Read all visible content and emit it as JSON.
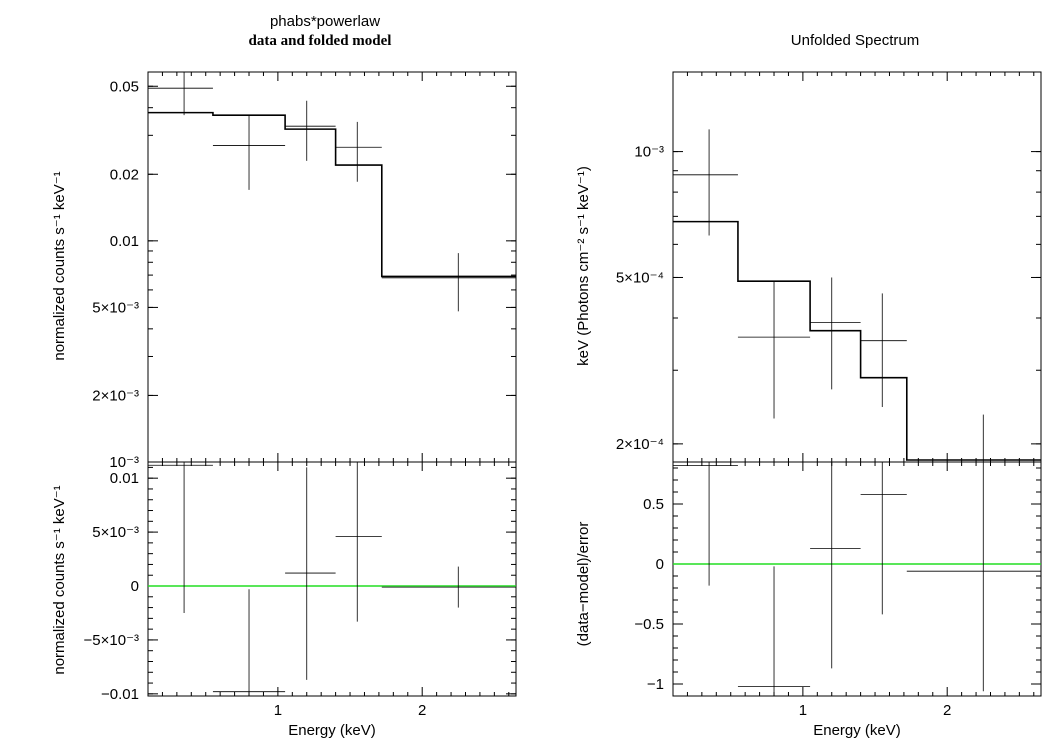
{
  "chart_data": [
    {
      "type": "step",
      "title": "phabs*powerlaw",
      "subtitle": "data and folded model",
      "top": {
        "ylabel": "normalized counts s⁻¹ keV⁻¹",
        "yscale": "log",
        "ylim": [
          0.001,
          0.058
        ],
        "yticks": [
          {
            "value": 0.05,
            "label": "0.05"
          },
          {
            "value": 0.02,
            "label": "0.02"
          },
          {
            "value": 0.01,
            "label": "0.01"
          },
          {
            "value": 0.005,
            "label": "5×10⁻³"
          },
          {
            "value": 0.002,
            "label": "2×10⁻³"
          },
          {
            "value": 0.001,
            "label": "10⁻³"
          }
        ],
        "data": [
          {
            "x": 0.35,
            "xerr": [
              0.1,
              0.55
            ],
            "y": 0.049,
            "yerr": [
              0.037,
              0.058
            ]
          },
          {
            "x": 0.8,
            "xerr": [
              0.55,
              1.05
            ],
            "y": 0.027,
            "yerr": [
              0.017,
              0.037
            ]
          },
          {
            "x": 1.2,
            "xerr": [
              1.05,
              1.4
            ],
            "y": 0.033,
            "yerr": [
              0.023,
              0.043
            ]
          },
          {
            "x": 1.55,
            "xerr": [
              1.4,
              1.72
            ],
            "y": 0.0265,
            "yerr": [
              0.0185,
              0.0345
            ]
          },
          {
            "x": 2.25,
            "xerr": [
              1.72,
              2.65
            ],
            "y": 0.0068,
            "yerr": [
              0.0048,
              0.0088
            ]
          }
        ],
        "model": [
          {
            "x0": 0.1,
            "x1": 0.55,
            "y": 0.038
          },
          {
            "x0": 0.55,
            "x1": 1.05,
            "y": 0.037
          },
          {
            "x0": 1.05,
            "x1": 1.4,
            "y": 0.032
          },
          {
            "x0": 1.4,
            "x1": 1.72,
            "y": 0.022
          },
          {
            "x0": 1.72,
            "x1": 2.65,
            "y": 0.0069
          }
        ]
      },
      "bottom": {
        "ylabel": "normalized counts s⁻¹ keV⁻¹",
        "xlabel": "Energy (keV)",
        "yscale": "linear",
        "ylim": [
          -0.0102,
          0.0115
        ],
        "yticks": [
          {
            "value": 0.01,
            "label": "0.01"
          },
          {
            "value": 0.005,
            "label": "5×10⁻³"
          },
          {
            "value": 0,
            "label": "0"
          },
          {
            "value": -0.005,
            "label": "−5×10⁻³"
          },
          {
            "value": -0.01,
            "label": "−0.01"
          }
        ],
        "data": [
          {
            "x": 0.35,
            "xerr": [
              0.1,
              0.55
            ],
            "y": 0.0112,
            "yerr": [
              -0.0025,
              0.0125
            ]
          },
          {
            "x": 0.8,
            "xerr": [
              0.55,
              1.05
            ],
            "y": -0.0098,
            "yerr": [
              -0.0115,
              -0.0003
            ]
          },
          {
            "x": 1.2,
            "xerr": [
              1.05,
              1.4
            ],
            "y": 0.0012,
            "yerr": [
              -0.0087,
              0.011
            ]
          },
          {
            "x": 1.55,
            "xerr": [
              1.4,
              1.72
            ],
            "y": 0.0046,
            "yerr": [
              -0.0033,
              0.0125
            ]
          },
          {
            "x": 2.25,
            "xerr": [
              1.72,
              2.65
            ],
            "y": -0.0001,
            "yerr": [
              -0.002,
              0.0018
            ]
          }
        ],
        "reference_line": 0
      },
      "xlim": [
        0.1,
        2.65
      ],
      "xticks": [
        {
          "value": 1,
          "label": "1"
        },
        {
          "value": 2,
          "label": "2"
        }
      ],
      "colors": {
        "data": "#000000",
        "model": "#000000",
        "reference": "#22dd22"
      }
    },
    {
      "type": "step",
      "title": "Unfolded Spectrum",
      "top": {
        "ylabel": "keV (Photons cm⁻² s⁻¹ keV⁻¹)",
        "yscale": "log",
        "ylim": [
          0.000181,
          0.00155
        ],
        "yticks": [
          {
            "value": 0.001,
            "label": "10⁻³"
          },
          {
            "value": 0.0005,
            "label": "5×10⁻⁴"
          },
          {
            "value": 0.0002,
            "label": "2×10⁻⁴"
          }
        ],
        "data": [
          {
            "x": 0.35,
            "xerr": [
              0.1,
              0.55
            ],
            "y": 0.00088,
            "yerr": [
              0.00063,
              0.00113
            ]
          },
          {
            "x": 0.8,
            "xerr": [
              0.55,
              1.05
            ],
            "y": 0.00036,
            "yerr": [
              0.00023,
              0.00049
            ]
          },
          {
            "x": 1.2,
            "xerr": [
              1.05,
              1.4
            ],
            "y": 0.00039,
            "yerr": [
              0.00027,
              0.0005
            ]
          },
          {
            "x": 1.55,
            "xerr": [
              1.4,
              1.72
            ],
            "y": 0.000353,
            "yerr": [
              0.000245,
              0.000458
            ]
          },
          {
            "x": 2.25,
            "xerr": [
              1.72,
              2.65
            ],
            "y": 0.000181,
            "yerr": [
              0.000125,
              0.000235
            ]
          }
        ],
        "model": [
          {
            "x0": 0.1,
            "x1": 0.55,
            "y": 0.00068
          },
          {
            "x0": 0.55,
            "x1": 1.05,
            "y": 0.00049
          },
          {
            "x0": 1.05,
            "x1": 1.4,
            "y": 0.000373
          },
          {
            "x0": 1.4,
            "x1": 1.72,
            "y": 0.000288
          },
          {
            "x0": 1.72,
            "x1": 2.65,
            "y": 0.000183
          }
        ]
      },
      "bottom": {
        "ylabel": "(data−model)/error",
        "xlabel": "Energy (keV)",
        "yscale": "linear",
        "ylim": [
          -1.1,
          0.85
        ],
        "yticks": [
          {
            "value": 0.5,
            "label": "0.5"
          },
          {
            "value": 0,
            "label": "0"
          },
          {
            "value": -0.5,
            "label": "−0.5"
          },
          {
            "value": -1,
            "label": "−1"
          }
        ],
        "data": [
          {
            "x": 0.35,
            "xerr": [
              0.1,
              0.55
            ],
            "y": 0.82,
            "yerr": [
              -0.18,
              1.82
            ]
          },
          {
            "x": 0.8,
            "xerr": [
              0.55,
              1.05
            ],
            "y": -1.02,
            "yerr": [
              -2.02,
              -0.02
            ]
          },
          {
            "x": 1.2,
            "xerr": [
              1.05,
              1.4
            ],
            "y": 0.13,
            "yerr": [
              -0.87,
              1.13
            ]
          },
          {
            "x": 1.55,
            "xerr": [
              1.4,
              1.72
            ],
            "y": 0.58,
            "yerr": [
              -0.42,
              1.58
            ]
          },
          {
            "x": 2.25,
            "xerr": [
              1.72,
              2.65
            ],
            "y": -0.06,
            "yerr": [
              -1.06,
              0.94
            ]
          }
        ],
        "reference_line": 0
      },
      "xlim": [
        0.1,
        2.65
      ],
      "xticks": [
        {
          "value": 1,
          "label": "1"
        },
        {
          "value": 2,
          "label": "2"
        }
      ],
      "colors": {
        "data": "#000000",
        "model": "#000000",
        "reference": "#22dd22"
      }
    }
  ]
}
